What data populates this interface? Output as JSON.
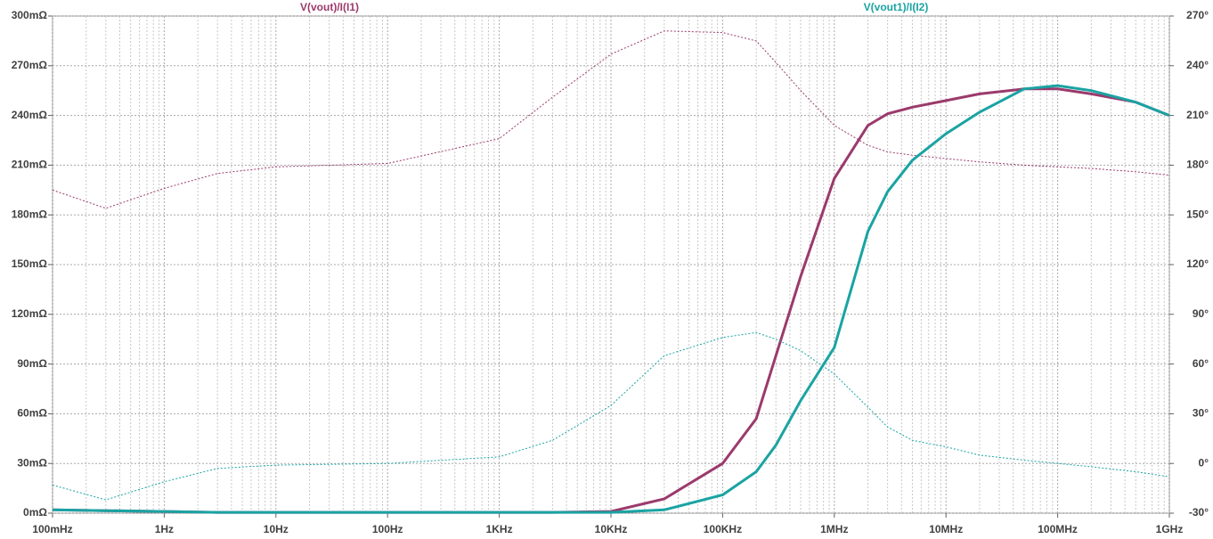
{
  "chart_data": {
    "type": "line",
    "log_x": true,
    "grid": true,
    "x": [
      0.1,
      0.3,
      1,
      3,
      10,
      100,
      1000,
      3000,
      10000,
      30000,
      100000,
      200000,
      300000,
      500000,
      1000000,
      2000000,
      3000000,
      5000000,
      10000000,
      20000000,
      50000000,
      100000000,
      200000000,
      500000000,
      1000000000
    ],
    "series": [
      {
        "name": "V(vout)/I(I1)",
        "color": "#9b3a6c",
        "values": [
          2,
          1.5,
          1,
          0.5,
          0.5,
          0.5,
          0.5,
          0.5,
          1,
          8.6,
          30,
          57,
          95,
          143,
          202,
          234,
          241,
          245,
          249,
          253,
          256,
          256,
          253,
          248,
          240
        ],
        "phase": [
          165,
          154,
          166,
          175,
          179,
          181,
          196,
          221,
          247,
          261,
          260,
          255,
          242,
          225,
          204,
          192,
          188,
          186,
          184,
          182,
          180,
          179,
          178,
          176,
          174
        ]
      },
      {
        "name": "V(vout1)/I(I2)",
        "color": "#1aa3a3",
        "values": [
          2,
          1.5,
          1,
          0.5,
          0.5,
          0.5,
          0.5,
          0.5,
          0.5,
          2,
          11,
          25,
          41,
          68,
          100,
          170,
          194,
          213,
          229,
          242,
          256,
          258,
          255,
          248,
          240
        ],
        "phase": [
          -13,
          -22,
          -11,
          -3,
          -1,
          0,
          4,
          14,
          35,
          65,
          76,
          79,
          75,
          68,
          54,
          34,
          22,
          14,
          10,
          5,
          2,
          0,
          -2,
          -5,
          -8
        ]
      }
    ],
    "xlim": [
      0.1,
      1000000000
    ],
    "xticks": [
      {
        "value": 0.1,
        "label": "100mHz"
      },
      {
        "value": 1,
        "label": "1Hz"
      },
      {
        "value": 10,
        "label": "10Hz"
      },
      {
        "value": 100,
        "label": "100Hz"
      },
      {
        "value": 1000,
        "label": "1KHz"
      },
      {
        "value": 10000,
        "label": "10KHz"
      },
      {
        "value": 100000,
        "label": "100KHz"
      },
      {
        "value": 1000000,
        "label": "1MHz"
      },
      {
        "value": 10000000,
        "label": "10MHz"
      },
      {
        "value": 100000000,
        "label": "100MHz"
      },
      {
        "value": 1000000000,
        "label": "1GHz"
      }
    ],
    "ylim": [
      0,
      300
    ],
    "yticks": [
      {
        "value": 0,
        "label": "0mΩ"
      },
      {
        "value": 30,
        "label": "30mΩ"
      },
      {
        "value": 60,
        "label": "60mΩ"
      },
      {
        "value": 90,
        "label": "90mΩ"
      },
      {
        "value": 120,
        "label": "120mΩ"
      },
      {
        "value": 150,
        "label": "150mΩ"
      },
      {
        "value": 180,
        "label": "180mΩ"
      },
      {
        "value": 210,
        "label": "210mΩ"
      },
      {
        "value": 240,
        "label": "240mΩ"
      },
      {
        "value": 270,
        "label": "270mΩ"
      },
      {
        "value": 300,
        "label": "300mΩ"
      }
    ],
    "y2lim": [
      -30,
      270
    ],
    "y2ticks": [
      {
        "value": -30,
        "label": "-30°"
      },
      {
        "value": 0,
        "label": "0°"
      },
      {
        "value": 30,
        "label": "30°"
      },
      {
        "value": 60,
        "label": "60°"
      },
      {
        "value": 90,
        "label": "90°"
      },
      {
        "value": 120,
        "label": "120°"
      },
      {
        "value": 150,
        "label": "150°"
      },
      {
        "value": 180,
        "label": "180°"
      },
      {
        "value": 210,
        "label": "210°"
      },
      {
        "value": 240,
        "label": "240°"
      },
      {
        "value": 270,
        "label": "270°"
      }
    ]
  }
}
